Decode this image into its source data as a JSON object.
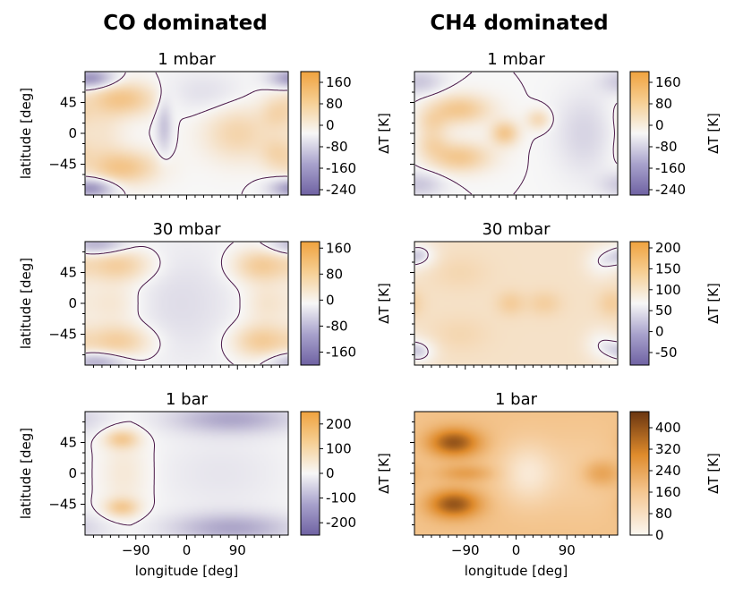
{
  "columns": [
    "CO dominated",
    "CH4 dominated"
  ],
  "colors": {
    "cool": "#6f62a3",
    "neutral": "#f7f7f7",
    "warm": "#f0a23e",
    "hot": "#6a3510",
    "contour": "#4a1848"
  },
  "chart_data": [
    {
      "type": "heatmap",
      "column": "CO dominated",
      "title": "1 mbar",
      "xlabel": "",
      "ylabel": "latitude [deg]",
      "cbar_label": "ΔT [K]",
      "xlim": [
        -180,
        180
      ],
      "ylim": [
        -90,
        90
      ],
      "clim": [
        -260,
        200
      ],
      "xticks": [
        -90,
        0,
        90
      ],
      "yticks": [
        -45,
        0,
        45
      ],
      "cbar_ticks": [
        160,
        80,
        0,
        -80,
        -160,
        -240
      ],
      "blobs": [
        {
          "lon": -110,
          "lat": 50,
          "w": 60,
          "h": 25,
          "v": 110
        },
        {
          "lon": -110,
          "lat": -50,
          "w": 60,
          "h": 25,
          "v": 110
        },
        {
          "lon": -150,
          "lat": 0,
          "w": 40,
          "h": 60,
          "v": 40
        },
        {
          "lon": 90,
          "lat": 0,
          "w": 60,
          "h": 40,
          "v": 80
        },
        {
          "lon": 160,
          "lat": 30,
          "w": 30,
          "h": 25,
          "v": 60
        },
        {
          "lon": 160,
          "lat": -30,
          "w": 30,
          "h": 25,
          "v": 60
        },
        {
          "lon": -170,
          "lat": 80,
          "w": 40,
          "h": 14,
          "v": -180
        },
        {
          "lon": -170,
          "lat": -80,
          "w": 40,
          "h": 14,
          "v": -180
        },
        {
          "lon": -40,
          "lat": 10,
          "w": 14,
          "h": 40,
          "v": -90
        },
        {
          "lon": 30,
          "lat": 60,
          "w": 70,
          "h": 30,
          "v": -40
        }
      ]
    },
    {
      "type": "heatmap",
      "column": "CH4 dominated",
      "title": "1 mbar",
      "xlabel": "",
      "ylabel": "",
      "cbar_label": "ΔT [K]",
      "xlim": [
        -180,
        180
      ],
      "ylim": [
        -90,
        90
      ],
      "clim": [
        -260,
        200
      ],
      "xticks": [
        -90,
        0,
        90
      ],
      "yticks": [
        -45,
        0,
        45
      ],
      "cbar_ticks": [
        160,
        80,
        0,
        -80,
        -160,
        -240
      ],
      "blobs": [
        {
          "lon": -100,
          "lat": 35,
          "w": 55,
          "h": 22,
          "v": 110
        },
        {
          "lon": -100,
          "lat": -35,
          "w": 55,
          "h": 22,
          "v": 110
        },
        {
          "lon": -20,
          "lat": 0,
          "w": 25,
          "h": 18,
          "v": 110
        },
        {
          "lon": -150,
          "lat": 15,
          "w": 30,
          "h": 20,
          "v": 60
        },
        {
          "lon": -150,
          "lat": -15,
          "w": 30,
          "h": 20,
          "v": 60
        },
        {
          "lon": 40,
          "lat": 20,
          "w": 22,
          "h": 15,
          "v": 70
        },
        {
          "lon": 120,
          "lat": 0,
          "w": 50,
          "h": 60,
          "v": -60
        },
        {
          "lon": -170,
          "lat": 75,
          "w": 40,
          "h": 18,
          "v": -80
        },
        {
          "lon": -170,
          "lat": -75,
          "w": 40,
          "h": 18,
          "v": -80
        }
      ]
    },
    {
      "type": "heatmap",
      "column": "CO dominated",
      "title": "30 mbar",
      "xlabel": "",
      "ylabel": "latitude [deg]",
      "cbar_label": "ΔT [K]",
      "xlim": [
        -180,
        180
      ],
      "ylim": [
        -90,
        90
      ],
      "clim": [
        -200,
        180
      ],
      "xticks": [
        -90,
        0,
        90
      ],
      "yticks": [
        -45,
        0,
        45
      ],
      "cbar_ticks": [
        160,
        80,
        0,
        -80,
        -160
      ],
      "blobs": [
        {
          "lon": -120,
          "lat": 55,
          "w": 60,
          "h": 25,
          "v": 90
        },
        {
          "lon": -120,
          "lat": -55,
          "w": 60,
          "h": 25,
          "v": 90
        },
        {
          "lon": 130,
          "lat": 55,
          "w": 50,
          "h": 25,
          "v": 90
        },
        {
          "lon": 130,
          "lat": -55,
          "w": 50,
          "h": 25,
          "v": 90
        },
        {
          "lon": -130,
          "lat": 0,
          "w": 50,
          "h": 30,
          "v": 40
        },
        {
          "lon": 140,
          "lat": 0,
          "w": 40,
          "h": 30,
          "v": 40
        },
        {
          "lon": -10,
          "lat": 0,
          "w": 100,
          "h": 90,
          "v": -35
        },
        {
          "lon": -160,
          "lat": 85,
          "w": 50,
          "h": 14,
          "v": -100
        },
        {
          "lon": -160,
          "lat": -85,
          "w": 50,
          "h": 14,
          "v": -100
        }
      ]
    },
    {
      "type": "heatmap",
      "column": "CH4 dominated",
      "title": "30 mbar",
      "xlabel": "",
      "ylabel": "",
      "cbar_label": "ΔT [K]",
      "xlim": [
        -180,
        180
      ],
      "ylim": [
        -90,
        90
      ],
      "clim": [
        -80,
        215
      ],
      "xticks": [
        -90,
        0,
        90
      ],
      "yticks": [
        -45,
        0,
        45
      ],
      "cbar_ticks": [
        200,
        150,
        100,
        50,
        0,
        -50
      ],
      "baseline": 55,
      "blobs": [
        {
          "lon": -10,
          "lat": 0,
          "w": 25,
          "h": 18,
          "v": 50
        },
        {
          "lon": 50,
          "lat": 0,
          "w": 30,
          "h": 18,
          "v": 45
        },
        {
          "lon": -100,
          "lat": 45,
          "w": 50,
          "h": 25,
          "v": 25
        },
        {
          "lon": -100,
          "lat": -45,
          "w": 50,
          "h": 25,
          "v": 25
        },
        {
          "lon": 170,
          "lat": 0,
          "w": 25,
          "h": 20,
          "v": 50
        },
        {
          "lon": -170,
          "lat": 70,
          "w": 30,
          "h": 20,
          "v": -70
        },
        {
          "lon": -170,
          "lat": -70,
          "w": 30,
          "h": 20,
          "v": -70
        },
        {
          "lon": 150,
          "lat": 60,
          "w": 30,
          "h": 25,
          "v": -50
        },
        {
          "lon": 150,
          "lat": -60,
          "w": 30,
          "h": 25,
          "v": -50
        }
      ]
    },
    {
      "type": "heatmap",
      "column": "CO dominated",
      "title": "1 bar",
      "xlabel": "longitude [deg]",
      "ylabel": "latitude [deg]",
      "cbar_label": "ΔT [K]",
      "xlim": [
        -180,
        180
      ],
      "ylim": [
        -90,
        90
      ],
      "clim": [
        -250,
        250
      ],
      "xticks": [
        -90,
        0,
        90
      ],
      "yticks": [
        -45,
        0,
        45
      ],
      "cbar_ticks": [
        200,
        100,
        0,
        -100,
        -200
      ],
      "blobs": [
        {
          "lon": -115,
          "lat": 50,
          "w": 30,
          "h": 14,
          "v": 120
        },
        {
          "lon": -115,
          "lat": -50,
          "w": 30,
          "h": 14,
          "v": 120
        },
        {
          "lon": -110,
          "lat": 0,
          "w": 45,
          "h": 55,
          "v": 45
        },
        {
          "lon": 80,
          "lat": 80,
          "w": 110,
          "h": 22,
          "v": -130
        },
        {
          "lon": 80,
          "lat": -80,
          "w": 110,
          "h": 22,
          "v": -130
        },
        {
          "lon": 60,
          "lat": 0,
          "w": 120,
          "h": 60,
          "v": -30
        }
      ]
    },
    {
      "type": "heatmap",
      "column": "CH4 dominated",
      "title": "1 bar",
      "xlabel": "longitude [deg]",
      "ylabel": "",
      "cbar_label": "ΔT [K]",
      "xlim": [
        -180,
        180
      ],
      "ylim": [
        -90,
        90
      ],
      "clim": [
        0,
        460
      ],
      "xticks": [
        -90,
        0,
        90
      ],
      "yticks": [
        -45,
        0,
        45
      ],
      "cbar_ticks": [
        400,
        320,
        240,
        160,
        80,
        0
      ],
      "baseline": 170,
      "blobs": [
        {
          "lon": -110,
          "lat": 45,
          "w": 45,
          "h": 20,
          "v": 230
        },
        {
          "lon": -110,
          "lat": -45,
          "w": 45,
          "h": 20,
          "v": 230
        },
        {
          "lon": -90,
          "lat": 0,
          "w": 50,
          "h": 12,
          "v": 80
        },
        {
          "lon": 150,
          "lat": 0,
          "w": 35,
          "h": 20,
          "v": 100
        },
        {
          "lon": 20,
          "lat": 0,
          "w": 50,
          "h": 45,
          "v": -120
        },
        {
          "lon": 120,
          "lat": 0,
          "w": 70,
          "h": 60,
          "v": -40
        }
      ]
    }
  ]
}
